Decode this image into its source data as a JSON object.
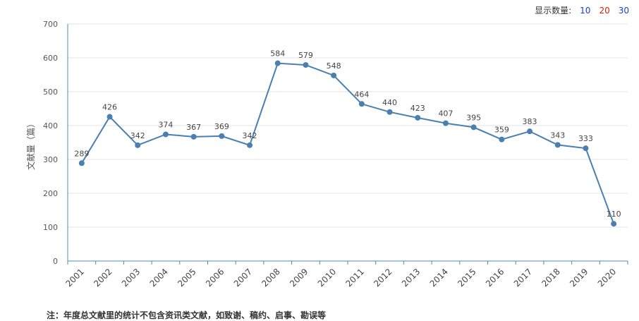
{
  "toolbar": {
    "label": "显示数量:",
    "options": [
      {
        "value": "10",
        "color": "#1a3ecf"
      },
      {
        "value": "20",
        "color": "#d81e06"
      },
      {
        "value": "30",
        "color": "#1a3ecf"
      }
    ]
  },
  "note": "注：年度总文献里的统计不包含资讯类文献，如致谢、稿约、启事、勘误等",
  "chart_data": {
    "type": "line",
    "title": "",
    "xlabel": "",
    "ylabel": "文献量（篇）",
    "ylim": [
      0,
      700
    ],
    "yticks": [
      0,
      100,
      200,
      300,
      400,
      500,
      600,
      700
    ],
    "grid": true,
    "line_color": "#4a7fb0",
    "x": [
      "2001",
      "2002",
      "2003",
      "2004",
      "2005",
      "2006",
      "2007",
      "2008",
      "2009",
      "2010",
      "2011",
      "2012",
      "2013",
      "2014",
      "2015",
      "2016",
      "2017",
      "2018",
      "2019",
      "2020"
    ],
    "values": [
      289,
      426,
      342,
      374,
      367,
      369,
      342,
      584,
      579,
      548,
      464,
      440,
      423,
      407,
      395,
      359,
      383,
      343,
      333,
      110
    ]
  }
}
